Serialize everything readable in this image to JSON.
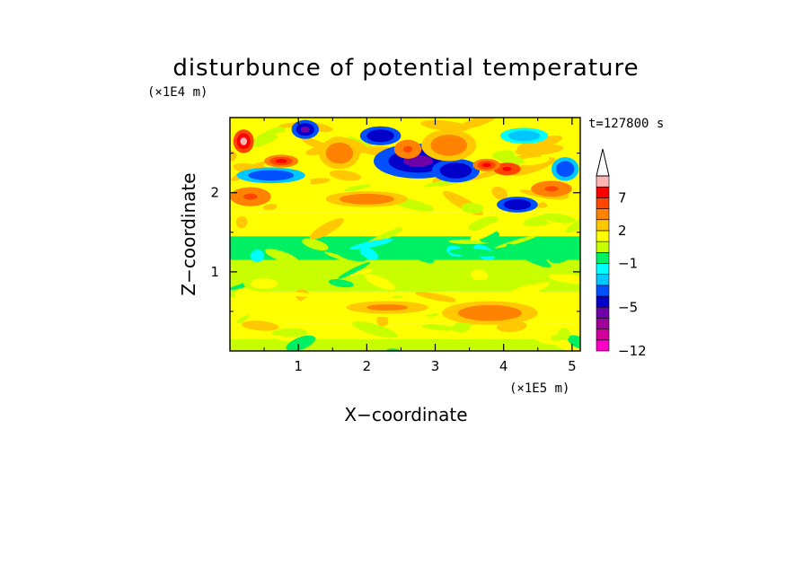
{
  "chart_data": {
    "type": "heatmap",
    "title": "disturbunce of potential temperature",
    "time_label": "t=127800 s",
    "xlabel": "X−coordinate",
    "ylabel": "Z−coordinate",
    "x_unit": "(×1E5 m)",
    "y_unit": "(×1E4 m)",
    "xlim": [
      0,
      5.12
    ],
    "ylim": [
      0,
      2.95
    ],
    "x_ticks": [
      "1",
      "2",
      "3",
      "4",
      "5"
    ],
    "y_ticks": [
      "1",
      "2"
    ],
    "colorbar": {
      "levels": [
        -12,
        -10,
        -8,
        -6,
        -5,
        -4,
        -3,
        -2,
        -1,
        0,
        1,
        2,
        3,
        5,
        7,
        9,
        11
      ],
      "labels": [
        "−12",
        "−5",
        "−1",
        "2",
        "7"
      ],
      "colors": [
        "#ff00c8",
        "#d2009b",
        "#a0009b",
        "#6e00aa",
        "#0000c8",
        "#0050ff",
        "#00c8ff",
        "#00ffff",
        "#00f064",
        "#c8ff00",
        "#ffff00",
        "#ffc800",
        "#ff8200",
        "#ff4600",
        "#ff0000",
        "#ffb4b4"
      ],
      "extend": "max"
    },
    "bands": [
      {
        "z": [
          0.0,
          0.15
        ],
        "value": 0.5
      },
      {
        "z": [
          0.15,
          0.35
        ],
        "value": 1.5
      },
      {
        "z": [
          0.35,
          0.75
        ],
        "value": 1.6
      },
      {
        "z": [
          0.75,
          0.95
        ],
        "value": 0.8
      },
      {
        "z": [
          0.95,
          1.15
        ],
        "value": 0.2
      },
      {
        "z": [
          1.15,
          1.45
        ],
        "value": -0.6
      },
      {
        "z": [
          1.45,
          1.75
        ],
        "value": 1.2
      },
      {
        "z": [
          1.75,
          2.95
        ],
        "value": 1.8
      }
    ],
    "features": [
      {
        "x": 2.3,
        "z": 0.55,
        "rx": 0.9,
        "rz": 0.12,
        "value": 3.0
      },
      {
        "x": 3.8,
        "z": 0.48,
        "rx": 0.7,
        "rz": 0.15,
        "value": 4.0
      },
      {
        "x": 0.5,
        "z": 0.85,
        "rx": 0.3,
        "rz": 0.1,
        "value": 1.5
      },
      {
        "x": 2.75,
        "z": 2.4,
        "rx": 0.65,
        "rz": 0.22,
        "value": -6
      },
      {
        "x": 3.3,
        "z": 2.28,
        "rx": 0.35,
        "rz": 0.15,
        "value": -5
      },
      {
        "x": 1.1,
        "z": 2.8,
        "rx": 0.2,
        "rz": 0.12,
        "value": -6
      },
      {
        "x": 2.2,
        "z": 2.72,
        "rx": 0.3,
        "rz": 0.12,
        "value": -5
      },
      {
        "x": 0.6,
        "z": 2.22,
        "rx": 0.5,
        "rz": 0.1,
        "value": -4
      },
      {
        "x": 4.2,
        "z": 1.85,
        "rx": 0.3,
        "rz": 0.1,
        "value": -5
      },
      {
        "x": 4.9,
        "z": 2.3,
        "rx": 0.2,
        "rz": 0.15,
        "value": -4
      },
      {
        "x": 4.3,
        "z": 2.72,
        "rx": 0.35,
        "rz": 0.1,
        "value": -3
      },
      {
        "x": 0.2,
        "z": 2.65,
        "rx": 0.15,
        "rz": 0.15,
        "value": 9
      },
      {
        "x": 0.75,
        "z": 2.4,
        "rx": 0.25,
        "rz": 0.08,
        "value": 7
      },
      {
        "x": 4.05,
        "z": 2.3,
        "rx": 0.2,
        "rz": 0.08,
        "value": 8
      },
      {
        "x": 3.75,
        "z": 2.35,
        "rx": 0.2,
        "rz": 0.08,
        "value": 7
      },
      {
        "x": 2.6,
        "z": 2.55,
        "rx": 0.2,
        "rz": 0.12,
        "value": 6
      },
      {
        "x": 3.2,
        "z": 2.6,
        "rx": 0.4,
        "rz": 0.2,
        "value": 4
      },
      {
        "x": 1.6,
        "z": 2.5,
        "rx": 0.3,
        "rz": 0.2,
        "value": 4
      },
      {
        "x": 2.0,
        "z": 1.92,
        "rx": 0.6,
        "rz": 0.1,
        "value": 4
      },
      {
        "x": 4.7,
        "z": 2.05,
        "rx": 0.3,
        "rz": 0.1,
        "value": 6
      },
      {
        "x": 0.3,
        "z": 1.95,
        "rx": 0.3,
        "rz": 0.12,
        "value": 5
      }
    ]
  }
}
